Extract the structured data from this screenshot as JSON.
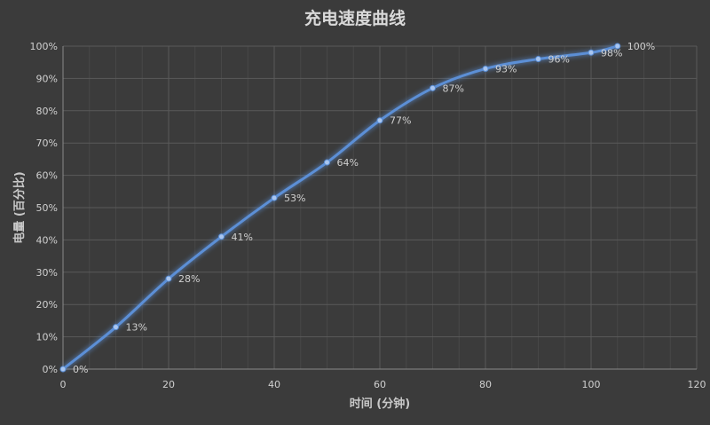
{
  "chart_data": {
    "type": "line",
    "title": "充电速度曲线",
    "xlabel": "时间 (分钟)",
    "ylabel": "电量 (百分比)",
    "xlim": [
      0,
      120
    ],
    "ylim": [
      0,
      100
    ],
    "x_ticks": [
      0,
      20,
      40,
      60,
      80,
      100,
      120
    ],
    "x_tick_labels": [
      "0",
      "20",
      "40",
      "60",
      "80",
      "100",
      "120"
    ],
    "y_ticks": [
      0,
      10,
      20,
      30,
      40,
      50,
      60,
      70,
      80,
      90,
      100
    ],
    "y_tick_labels": [
      "0%",
      "10%",
      "20%",
      "30%",
      "40%",
      "50%",
      "60%",
      "70%",
      "80%",
      "90%",
      "100%"
    ],
    "grid": true,
    "legend": "none",
    "series": [
      {
        "x": [
          0,
          10,
          20,
          30,
          40,
          50,
          60,
          70,
          80,
          90,
          100,
          105
        ],
        "y": [
          0,
          13,
          28,
          41,
          53,
          64,
          77,
          87,
          93,
          96,
          98,
          100
        ],
        "labels": [
          "0%",
          "13%",
          "28%",
          "41%",
          "53%",
          "64%",
          "77%",
          "87%",
          "93%",
          "96%",
          "98%",
          "100%"
        ],
        "color": "#5b8fd6"
      }
    ]
  }
}
